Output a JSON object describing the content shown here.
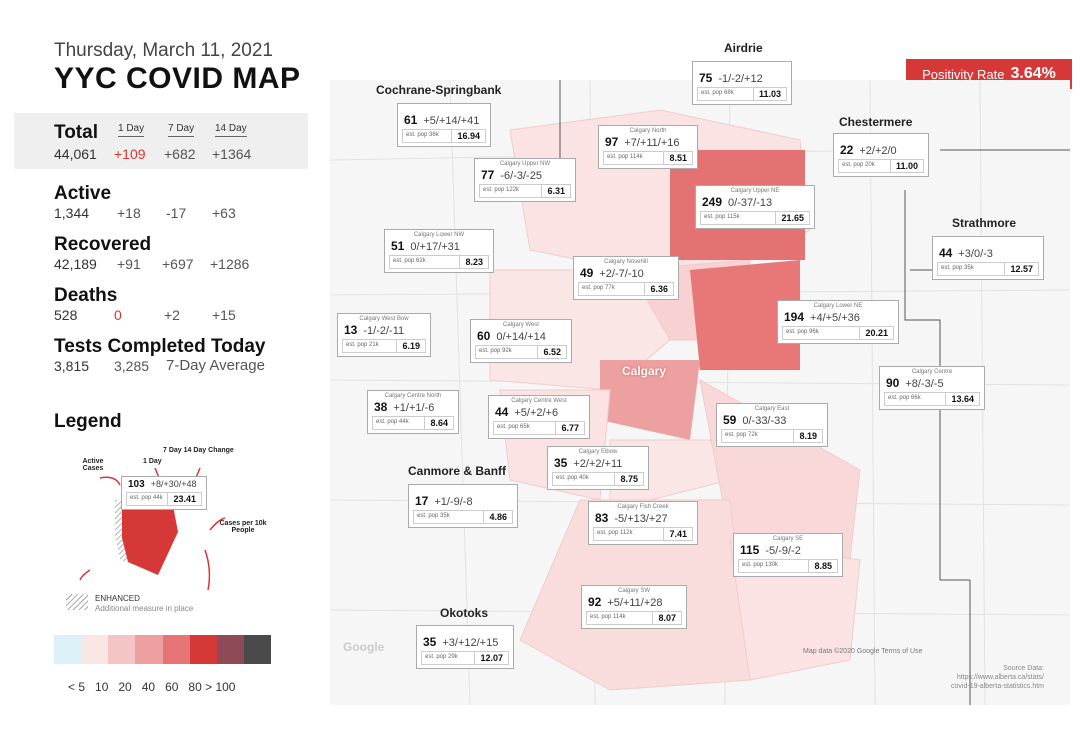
{
  "header": {
    "date": "Thursday, March 11, 2021",
    "title": "YYC COVID MAP"
  },
  "stats": {
    "col_headers": [
      "1 Day",
      "7 Day",
      "14 Day"
    ],
    "total": {
      "label": "Total",
      "value": "44,061",
      "d1": "+109",
      "d7": "+682",
      "d14": "+1364"
    },
    "active": {
      "label": "Active",
      "value": "1,344",
      "d1": "+18",
      "d7": "-17",
      "d14": "+63"
    },
    "recovered": {
      "label": "Recovered",
      "value": "42,189",
      "d1": "+91",
      "d7": "+697",
      "d14": "+1286"
    },
    "deaths": {
      "label": "Deaths",
      "value": "528",
      "d1": "0",
      "d7": "+2",
      "d14": "+15"
    },
    "tests": {
      "label": "Tests Completed Today",
      "value": "3,815",
      "avg": "3,285",
      "avg_label": "7-Day Average"
    }
  },
  "legend": {
    "title": "Legend",
    "labels": {
      "active": "Active Cases",
      "one_day": "1 Day",
      "seven_fourteen": "7 Day  14 Day Change",
      "per10k": "Cases per 10k People",
      "enhanced": "ENHANCED",
      "enhanced_sub": "Additional measure in place"
    },
    "sample": {
      "active": "103",
      "changes": "+8/+30/+48",
      "pop": "est. pop 44k",
      "rate": "23.41"
    },
    "scale_colors": [
      "#dcf0f7",
      "#fbe6e6",
      "#f5c4c4",
      "#ee9f9f",
      "#e67474",
      "#d63838",
      "#8f4a58",
      "#4a4a4a"
    ],
    "scale_labels": "< 5   10   20   40   60   80 > 100"
  },
  "positivity": {
    "label": "Positivity Rate",
    "value": "3.64%"
  },
  "regions": [
    "Airdrie",
    "Cochrane-Springbank",
    "Chestermere",
    "Strathmore",
    "Canmore & Banff",
    "Okotoks"
  ],
  "areas": [
    {
      "name": "",
      "active": "75",
      "changes": "-1/-2/+12",
      "pop": "est. pop 68k",
      "rate": "11.03"
    },
    {
      "name": "",
      "active": "61",
      "changes": "+5/+14/+41",
      "pop": "est. pop 36k",
      "rate": "16.94"
    },
    {
      "name": "Calgary North",
      "active": "97",
      "changes": "+7/+11/+16",
      "pop": "est. pop 114k",
      "rate": "8.51"
    },
    {
      "name": "",
      "active": "22",
      "changes": "+2/+2/0",
      "pop": "est. pop 20k",
      "rate": "11.00"
    },
    {
      "name": "Calgary Upper NW",
      "active": "77",
      "changes": "-6/-3/-25",
      "pop": "est. pop 122k",
      "rate": "6.31"
    },
    {
      "name": "Calgary Upper NE",
      "active": "249",
      "changes": "0/-37/-13",
      "pop": "est. pop 115k",
      "rate": "21.65"
    },
    {
      "name": "Calgary Lower NW",
      "active": "51",
      "changes": "0/+17/+31",
      "pop": "est. pop 62k",
      "rate": "8.23"
    },
    {
      "name": "",
      "active": "44",
      "changes": "+3/0/-3",
      "pop": "est. pop 35k",
      "rate": "12.57"
    },
    {
      "name": "Calgary Nosehill",
      "active": "49",
      "changes": "+2/-7/-10",
      "pop": "est. pop 77k",
      "rate": "6.36"
    },
    {
      "name": "Calgary Lower NE",
      "active": "194",
      "changes": "+4/+5/+36",
      "pop": "est. pop 96k",
      "rate": "20.21"
    },
    {
      "name": "Calgary West Bow",
      "active": "13",
      "changes": "-1/-2/-11",
      "pop": "est. pop 21k",
      "rate": "6.19"
    },
    {
      "name": "Calgary West",
      "active": "60",
      "changes": "0/+14/+14",
      "pop": "est. pop 92k",
      "rate": "6.52"
    },
    {
      "name": "Calgary Centre",
      "active": "90",
      "changes": "+8/-3/-5",
      "pop": "est. pop 66k",
      "rate": "13.64"
    },
    {
      "name": "Calgary Centre North",
      "active": "38",
      "changes": "+1/+1/-6",
      "pop": "est. pop 44k",
      "rate": "8.64"
    },
    {
      "name": "Calgary Centre West",
      "active": "44",
      "changes": "+5/+2/+6",
      "pop": "est. pop 65k",
      "rate": "6.77"
    },
    {
      "name": "Calgary East",
      "active": "59",
      "changes": "0/-33/-33",
      "pop": "est. pop 72k",
      "rate": "8.19"
    },
    {
      "name": "Calgary Elbow",
      "active": "35",
      "changes": "+2/+2/+11",
      "pop": "est. pop 40k",
      "rate": "8.75"
    },
    {
      "name": "",
      "active": "17",
      "changes": "+1/-9/-8",
      "pop": "est. pop 35k",
      "rate": "4.86"
    },
    {
      "name": "Calgary Fish Creek",
      "active": "83",
      "changes": "-5/+13/+27",
      "pop": "est. pop 112k",
      "rate": "7.41"
    },
    {
      "name": "Calgary SE",
      "active": "115",
      "changes": "-5/-9/-2",
      "pop": "est. pop 130k",
      "rate": "8.85"
    },
    {
      "name": "Calgary SW",
      "active": "92",
      "changes": "+5/+11/+28",
      "pop": "est. pop 114k",
      "rate": "8.07"
    },
    {
      "name": "",
      "active": "35",
      "changes": "+3/+12/+15",
      "pop": "est. pop 29k",
      "rate": "12.07"
    }
  ],
  "map_labels": {
    "city": "Calgary",
    "credit": "Map data ©2020 Google   Terms of Use",
    "google": "Google"
  },
  "source": {
    "label": "Source Data:",
    "url1": "https://www.alberta.ca/stats/",
    "url2": "covid-19-alberta-statistics.htm"
  }
}
